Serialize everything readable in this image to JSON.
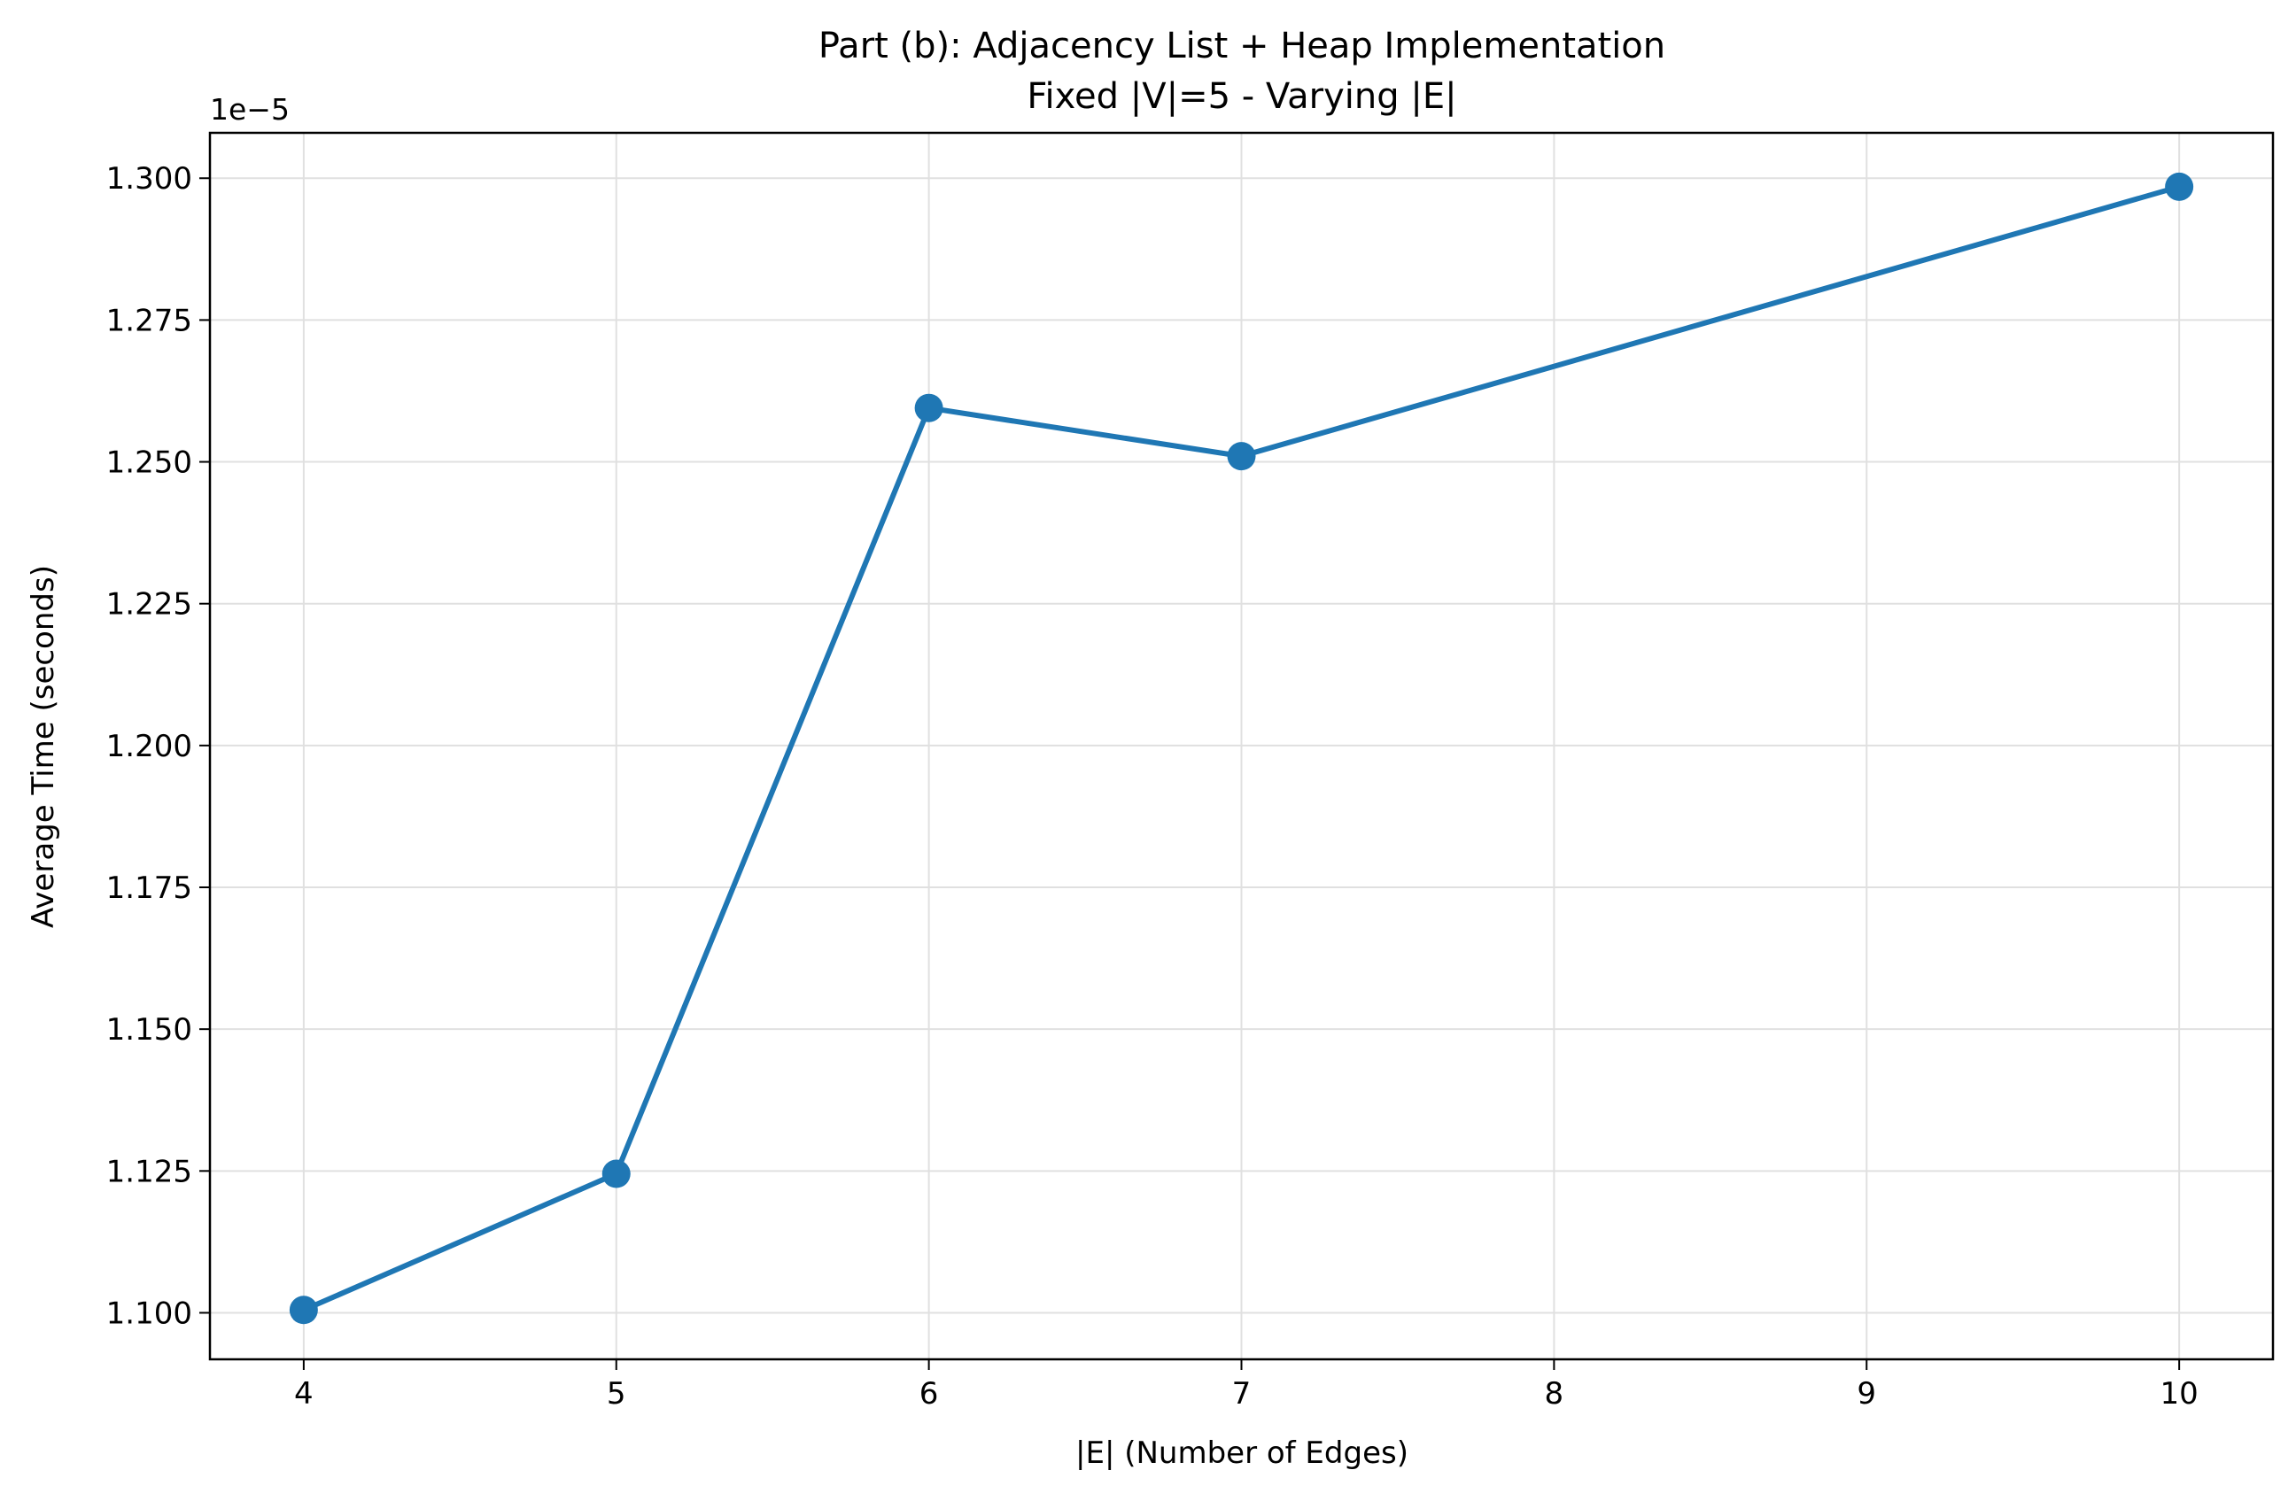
{
  "chart_data": {
    "type": "line",
    "title": "Part (b): Adjacency List + Heap Implementation",
    "subtitle": "Fixed |V|=5 - Varying |E|",
    "xlabel": "|E| (Number of Edges)",
    "ylabel": "Average Time (seconds)",
    "y_offset_label": "1e−5",
    "x_ticks": [
      "4",
      "5",
      "6",
      "7",
      "8",
      "9",
      "10"
    ],
    "y_ticks": [
      "1.100",
      "1.125",
      "1.150",
      "1.175",
      "1.200",
      "1.225",
      "1.250",
      "1.275",
      "1.300"
    ],
    "xlim": [
      3.7,
      10.3
    ],
    "ylim": [
      1.0918e-05,
      1.308e-05
    ],
    "grid": true,
    "series_color": "#1f77b4",
    "series": [
      {
        "x": [
          4,
          5,
          6,
          7,
          10
        ],
        "y": [
          1.1005e-05,
          1.1245e-05,
          1.2595e-05,
          1.251e-05,
          1.2985e-05
        ]
      }
    ]
  }
}
